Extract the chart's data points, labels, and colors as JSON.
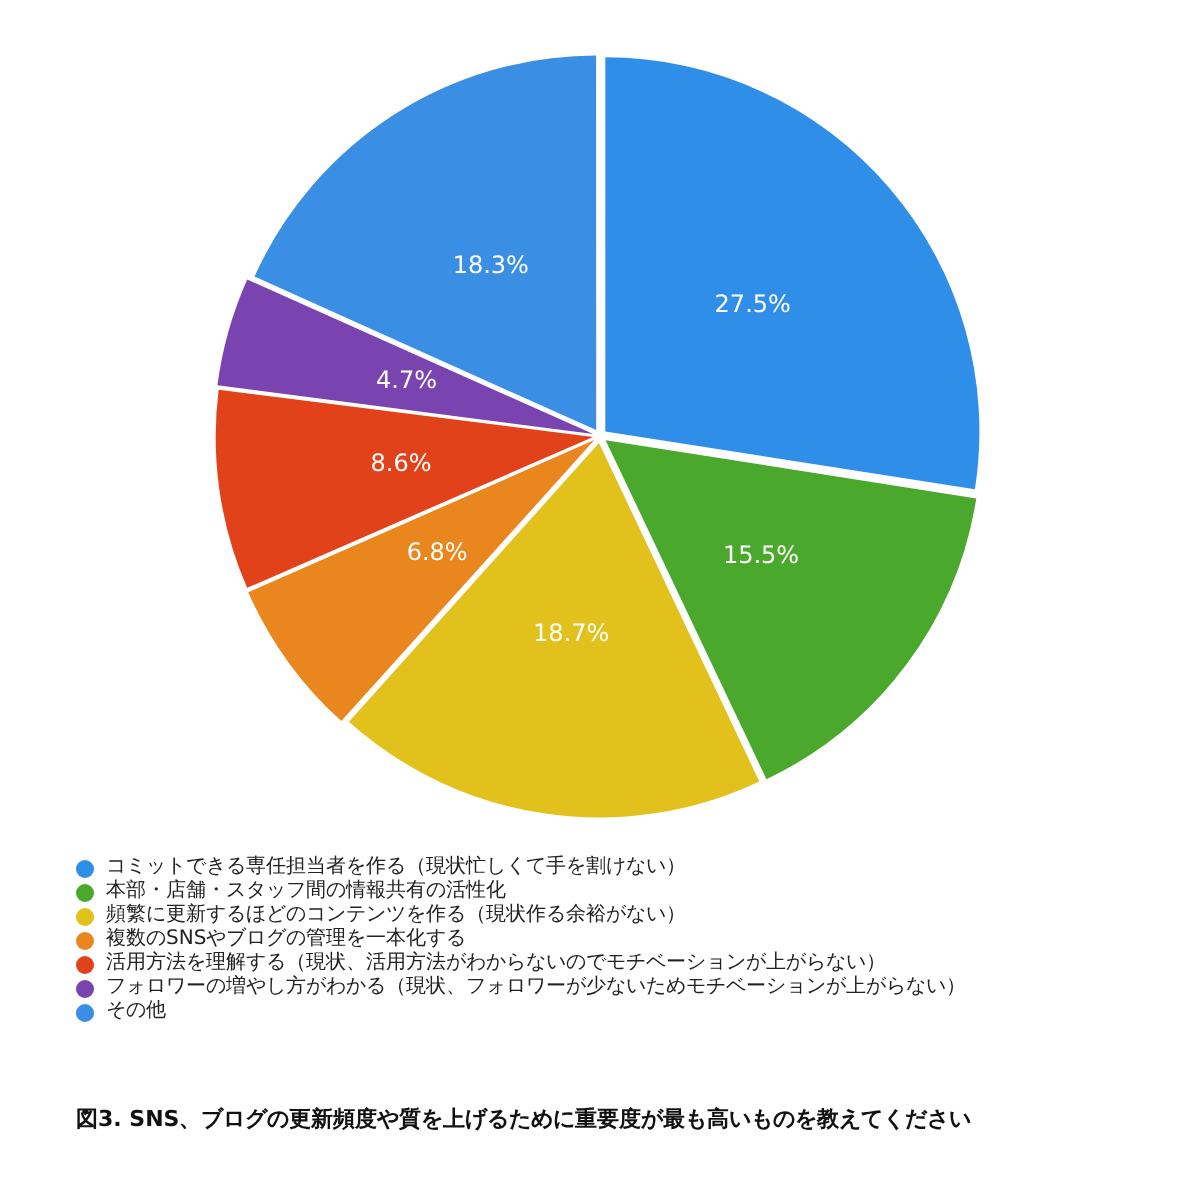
{
  "chart_data": {
    "type": "pie",
    "title": "図3. SNS、ブログの更新頻度や質を上げるために重要度が最も高いものを教えてください",
    "categories": [
      "コミットできる専任担当者を作る（現状忙しくて手を割けない）",
      "本部・店舗・スタッフ間の情報共有の活性化",
      "頻繁に更新するほどのコンテンツを作る（現状作る余裕がない）",
      "複数のSNSやブログの管理を一本化する",
      "活用方法を理解する（現状、活用方法がわからないのでモチベーションが上がらない）",
      "フォロワーの増やし方がわかる（現状、フォロワーが少ないためモチベーションが上がらない）",
      "その他"
    ],
    "values": [
      27.5,
      15.5,
      18.7,
      6.8,
      8.6,
      4.7,
      18.3
    ],
    "value_labels": [
      "27.5%",
      "15.5%",
      "18.7%",
      "6.8%",
      "8.6%",
      "4.7%",
      "18.3%"
    ],
    "colors": [
      "#2f8ee8",
      "#4aa82c",
      "#e2c11c",
      "#e9861e",
      "#e2421a",
      "#7a44b0",
      "#3a8fe4"
    ],
    "legend": "bottom"
  }
}
